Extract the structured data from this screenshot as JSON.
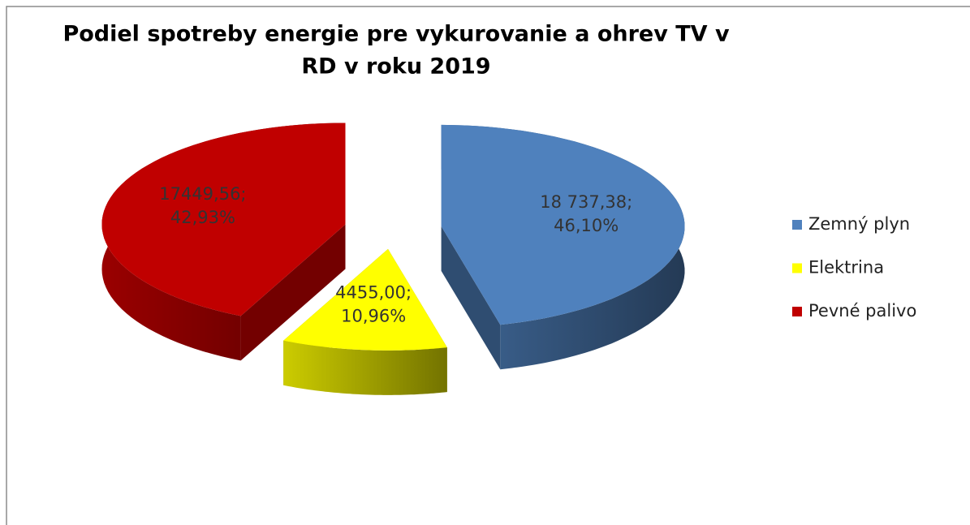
{
  "chart_data": {
    "type": "pie",
    "title": [
      "Podiel spotreby energie pre vykurovanie a ohrev TV v",
      "RD v roku 2019"
    ],
    "categories": [
      "Zemný plyn",
      "Elektrina",
      "Pevné palivo"
    ],
    "values": [
      18737.38,
      4455.0,
      17449.56
    ],
    "value_labels": [
      [
        "18 737,38;",
        "46,10%"
      ],
      [
        "4455,00;",
        "10,96%"
      ],
      [
        "17449,56;",
        "42,93%"
      ]
    ],
    "colors": [
      "#4f81bd",
      "#ffff00",
      "#c00000"
    ],
    "legend": "right"
  }
}
